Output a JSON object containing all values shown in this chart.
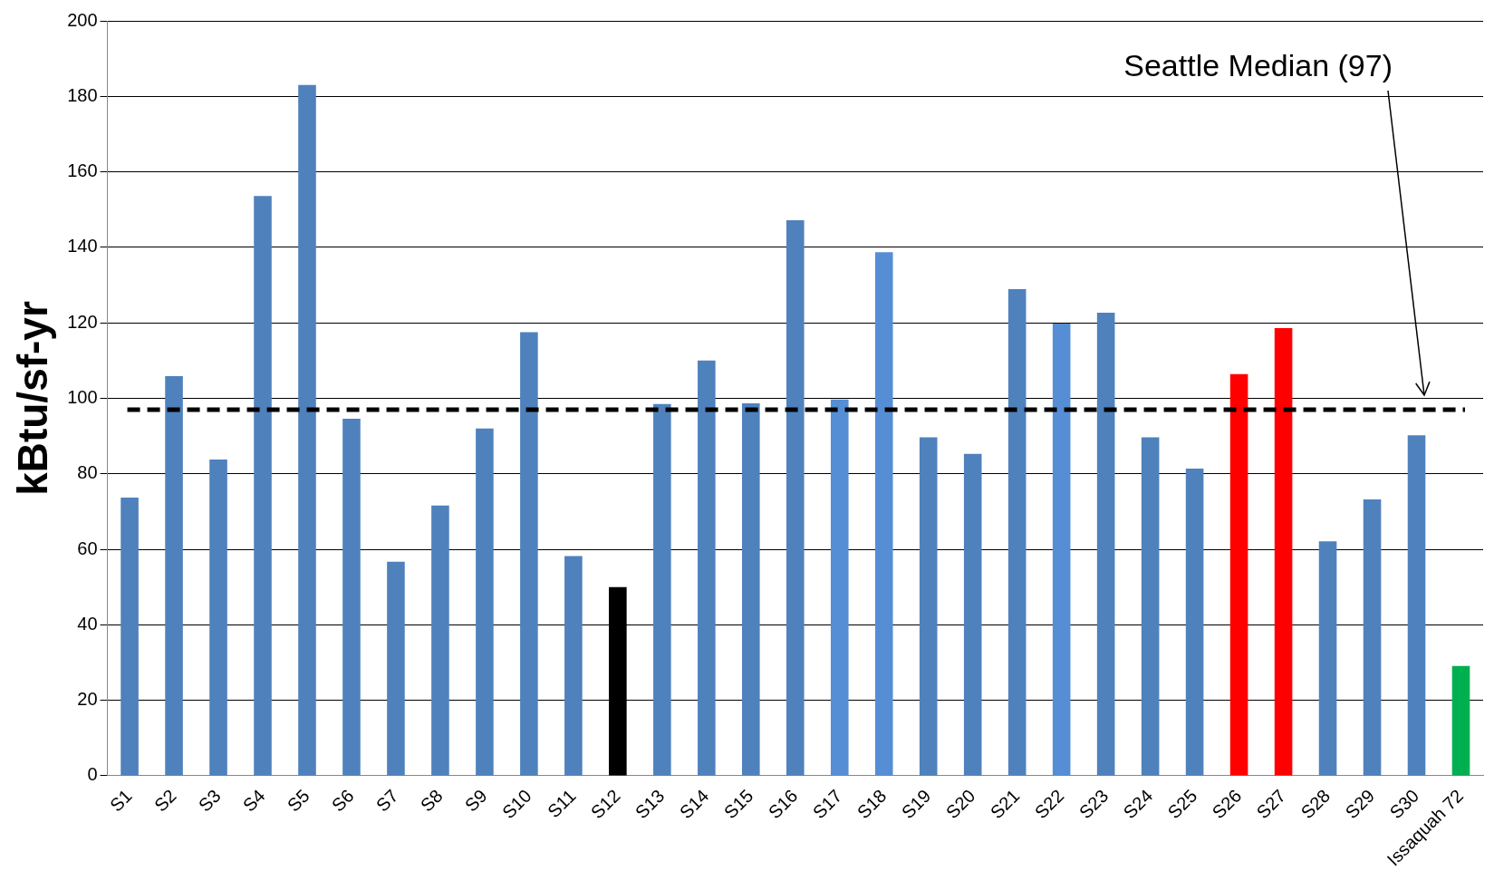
{
  "chart_data": {
    "type": "bar",
    "ylabel": "kBtu/sf-yr",
    "categories": [
      "S1",
      "S2",
      "S3",
      "S4",
      "S5",
      "S6",
      "S7",
      "S8",
      "S9",
      "S10",
      "S11",
      "S12",
      "S13",
      "S14",
      "S15",
      "S16",
      "S17",
      "S18",
      "S19",
      "S20",
      "S21",
      "S22",
      "S23",
      "S24",
      "S25",
      "S26",
      "S27",
      "S28",
      "S29",
      "S30",
      "Issaquah 72"
    ],
    "values": [
      73.7,
      105.9,
      83.8,
      153.6,
      183,
      94.6,
      56.7,
      71.6,
      92,
      117.5,
      58.2,
      50,
      98.5,
      110,
      98.7,
      147.2,
      99.7,
      138.7,
      89.7,
      85.3,
      128.9,
      119.8,
      122.7,
      89.7,
      81.4,
      106.4,
      118.6,
      62.1,
      73.2,
      90.2,
      29.1
    ],
    "colors": [
      "#4f81bd",
      "#4f81bd",
      "#4f81bd",
      "#4f81bd",
      "#4f81bd",
      "#4f81bd",
      "#4f81bd",
      "#4f81bd",
      "#4f81bd",
      "#4f81bd",
      "#4f81bd",
      "#000000",
      "#4f81bd",
      "#4f81bd",
      "#4f81bd",
      "#4f81bd",
      "#558ed5",
      "#558ed5",
      "#4f81bd",
      "#4f81bd",
      "#4f81bd",
      "#558ed5",
      "#4f81bd",
      "#4f81bd",
      "#4f81bd",
      "#ff0000",
      "#ff0000",
      "#4f81bd",
      "#4f81bd",
      "#4f81bd",
      "#00b050"
    ],
    "ylim": [
      0,
      200
    ],
    "yticks": [
      0,
      20,
      40,
      60,
      80,
      100,
      120,
      140,
      160,
      180,
      200
    ],
    "grid": "y",
    "legend": false,
    "ref_lines": [
      {
        "axis": "y",
        "value": 97,
        "label": "Seattle Median (97)",
        "color": "#000000",
        "line_style": "dashed"
      }
    ]
  }
}
